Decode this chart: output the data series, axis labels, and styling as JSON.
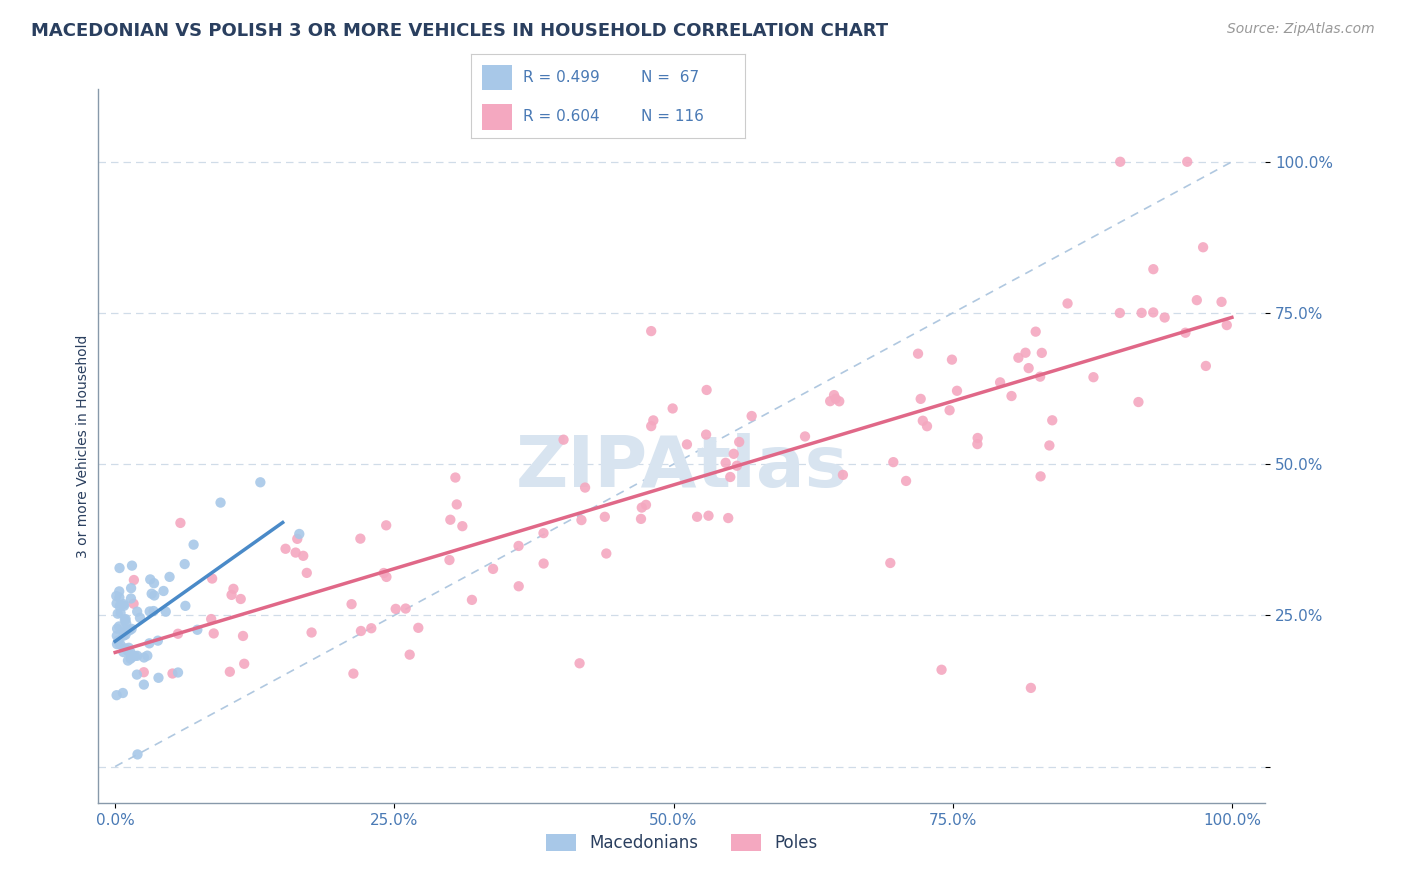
{
  "title": "MACEDONIAN VS POLISH 3 OR MORE VEHICLES IN HOUSEHOLD CORRELATION CHART",
  "source": "Source: ZipAtlas.com",
  "ylabel": "3 or more Vehicles in Household",
  "macedonian_color": "#a8c8e8",
  "polish_color": "#f4a8c0",
  "macedonian_R": 0.499,
  "macedonian_N": 67,
  "polish_R": 0.604,
  "polish_N": 116,
  "macedonian_line_color": "#4a8ac8",
  "polish_line_color": "#e06888",
  "ref_line_color": "#b0c8e0",
  "background_color": "#ffffff",
  "grid_color": "#d0dce8",
  "title_color": "#2a3f5f",
  "label_color": "#4a7ab5",
  "axis_color": "#8899aa",
  "watermark_color": "#d8e4f0",
  "title_fontsize": 13,
  "tick_fontsize": 11,
  "ylabel_fontsize": 10,
  "source_fontsize": 10
}
